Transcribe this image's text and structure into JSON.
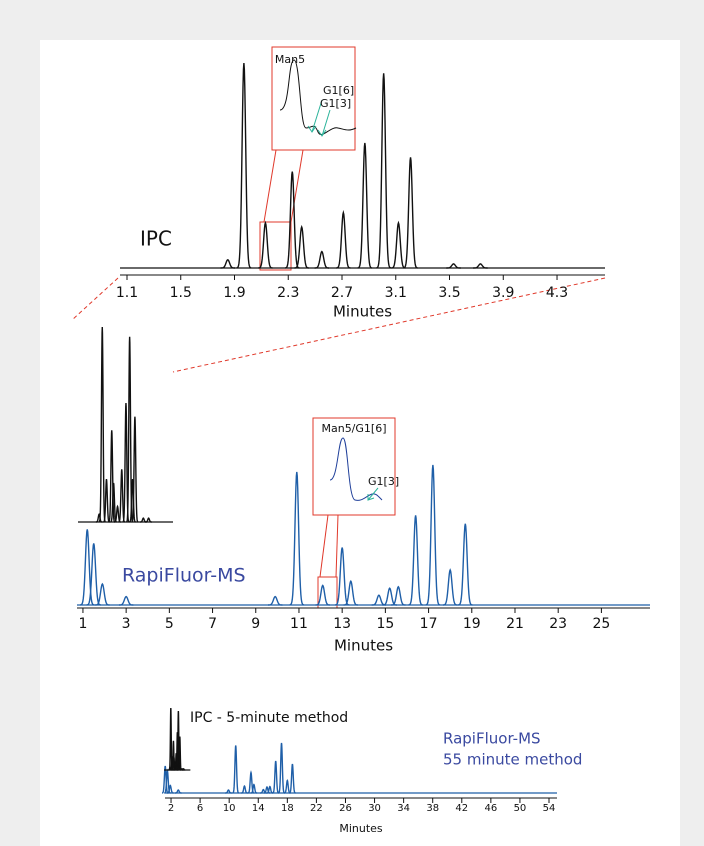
{
  "chart_data": [
    {
      "type": "line",
      "label": "IPC",
      "x_label": "Minutes",
      "color": "#111111",
      "xlim": [
        1.048,
        4.657
      ],
      "xticks": [
        1.1,
        1.5,
        1.9,
        2.3,
        2.7,
        3.1,
        3.5,
        3.9,
        4.3
      ],
      "peaks": {
        "x": [
          1.85,
          1.97,
          2.13,
          2.33,
          2.4,
          2.55,
          2.71,
          2.87,
          3.01,
          3.12,
          3.21,
          3.53,
          3.73
        ],
        "values": [
          4,
          100,
          22,
          47,
          20,
          8,
          27,
          61,
          95,
          22,
          54,
          2,
          2
        ]
      },
      "annotations": [
        "Man5",
        "G1[6]",
        "G1[3]"
      ]
    },
    {
      "type": "line",
      "label": "RapiFluor-MS",
      "x_label": "Minutes",
      "color": "#1f5fa8",
      "xlim": [
        0.725,
        27.25
      ],
      "xticks": [
        1,
        3,
        5,
        7,
        9,
        11,
        13,
        15,
        17,
        19,
        21,
        23,
        25
      ],
      "peaks": {
        "x": [
          1.2,
          1.5,
          1.9,
          3,
          9.9,
          10.9,
          12.1,
          13,
          13.4,
          14.7,
          15.2,
          15.6,
          16.4,
          17.2,
          18,
          18.7
        ],
        "values": [
          54,
          44,
          15,
          6,
          6,
          95,
          14,
          41,
          17,
          7,
          12,
          13,
          64,
          100,
          25,
          58
        ]
      },
      "annotations": [
        "Man5/G1[6]",
        "G1[3]"
      ]
    },
    {
      "type": "line",
      "x_label": "Minutes",
      "xlim": [
        1.17,
        55.1
      ],
      "xticks": [
        2,
        6,
        10,
        14,
        18,
        22,
        26,
        30,
        34,
        38,
        42,
        46,
        50,
        54
      ],
      "labels": [
        "IPC - 5-minute method",
        "RapiFluor-MS",
        "55 minute method"
      ]
    }
  ]
}
